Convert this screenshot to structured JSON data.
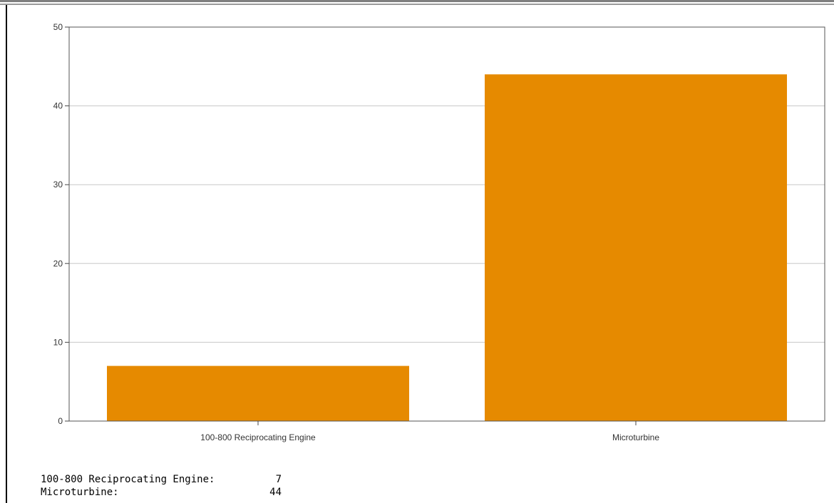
{
  "chart_data": {
    "type": "bar",
    "categories": [
      "100-800 Reciprocating Engine",
      "Microturbine"
    ],
    "values": [
      7,
      44
    ],
    "xlabel": "",
    "ylabel": "",
    "ylim": [
      0,
      50
    ],
    "yticks": [
      "0",
      "10",
      "20",
      "30",
      "40",
      "50"
    ],
    "grid": true,
    "legend": "none",
    "bar_color": "#e68a00"
  },
  "summary": {
    "rows": [
      {
        "label": "100-800 Reciprocating Engine:",
        "value": "7"
      },
      {
        "label": "Microturbine:",
        "value": "44"
      }
    ]
  }
}
